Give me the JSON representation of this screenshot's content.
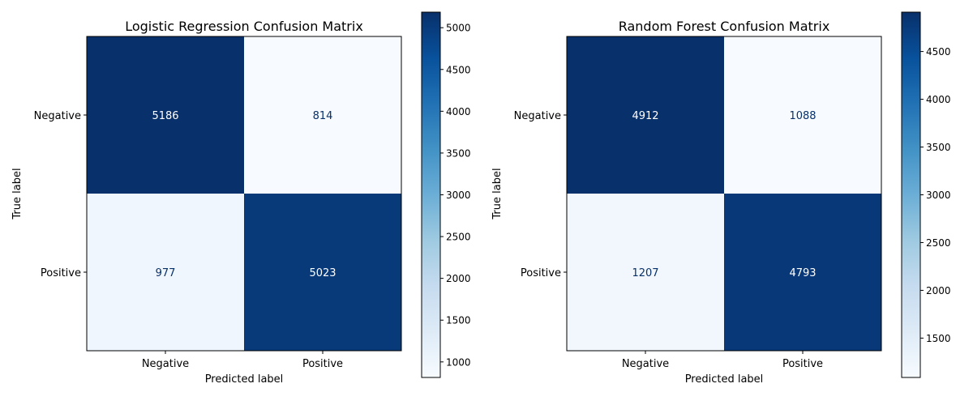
{
  "chart_data": [
    {
      "type": "heatmap",
      "title": "Logistic Regression Confusion Matrix",
      "xlabel": "Predicted label",
      "ylabel": "True label",
      "x_categories": [
        "Negative",
        "Positive"
      ],
      "y_categories": [
        "Negative",
        "Positive"
      ],
      "values": [
        [
          5186,
          814
        ],
        [
          977,
          5023
        ]
      ],
      "colormap": "Blues",
      "colorbar": {
        "range": [
          814,
          5186
        ],
        "ticks": [
          1000,
          1500,
          2000,
          2500,
          3000,
          3500,
          4000,
          4500,
          5000
        ]
      }
    },
    {
      "type": "heatmap",
      "title": "Random Forest Confusion Matrix",
      "xlabel": "Predicted label",
      "ylabel": "True label",
      "x_categories": [
        "Negative",
        "Positive"
      ],
      "y_categories": [
        "Negative",
        "Positive"
      ],
      "values": [
        [
          4912,
          1088
        ],
        [
          1207,
          4793
        ]
      ],
      "colormap": "Blues",
      "colorbar": {
        "range": [
          1088,
          4912
        ],
        "ticks": [
          1500,
          2000,
          2500,
          3000,
          3500,
          4000,
          4500
        ]
      }
    }
  ]
}
